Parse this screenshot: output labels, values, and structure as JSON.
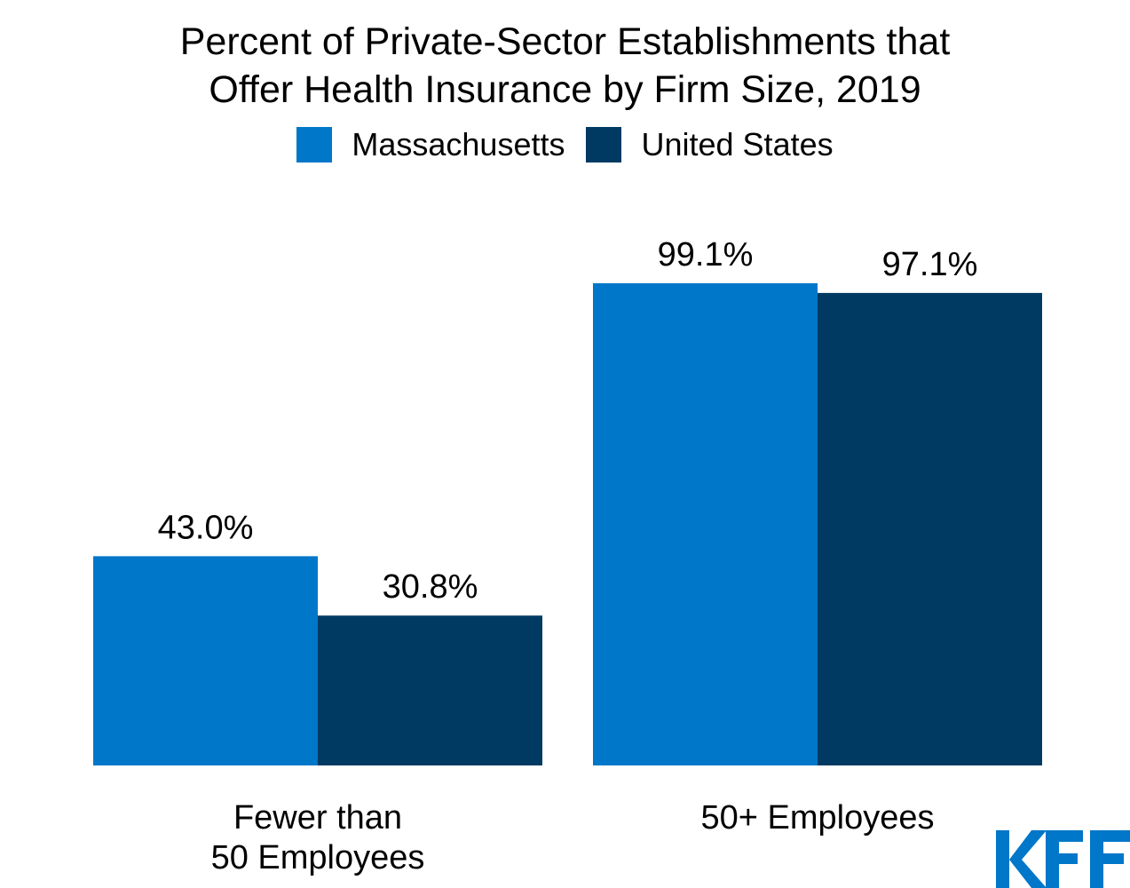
{
  "chart_data": {
    "type": "bar",
    "title_lines": [
      "Percent of Private-Sector Establishments that",
      "Offer Health Insurance by Firm Size, 2019"
    ],
    "categories": [
      [
        "Fewer than",
        "50 Employees"
      ],
      [
        "50+ Employees"
      ]
    ],
    "series": [
      {
        "name": "Massachusetts",
        "values": [
          43.0,
          99.1
        ],
        "labels": [
          "43.0%",
          "99.1%"
        ],
        "color": "#0077C8"
      },
      {
        "name": "United States",
        "values": [
          30.8,
          97.1
        ],
        "labels": [
          "30.8%",
          "97.1%"
        ],
        "color": "#003A63"
      }
    ],
    "ylim": [
      0,
      100
    ],
    "grid": false,
    "legend": "top-center",
    "xlabel": "",
    "ylabel": ""
  },
  "logo": {
    "text": "KFF",
    "color": "#0077C8"
  }
}
